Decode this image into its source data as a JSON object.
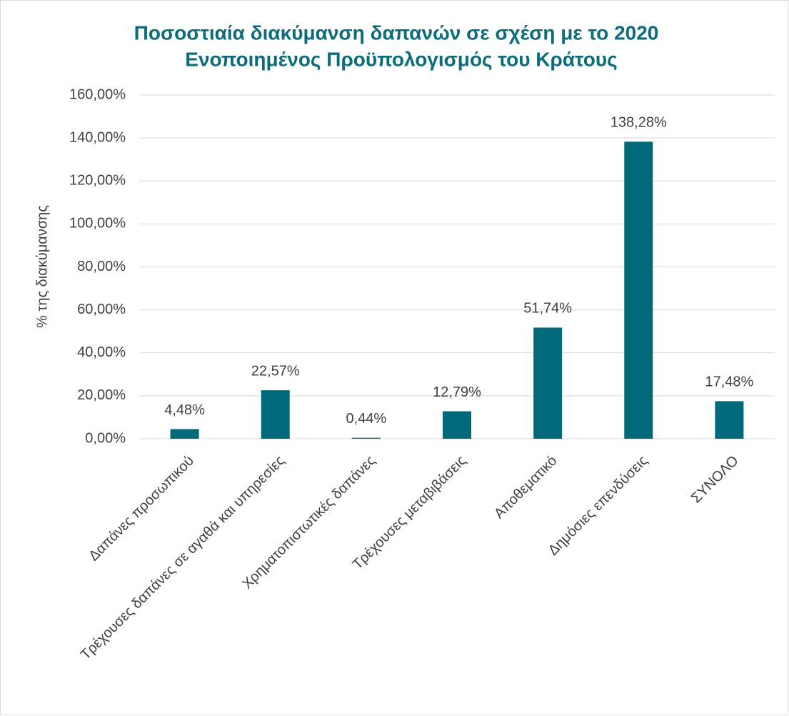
{
  "chart_data": {
    "type": "bar",
    "title": [
      "Ποσοστιαία διακύμανση δαπανών σε σχέση με το 2020",
      "Ενοποιημένος Προϋπολογισμός του Κράτους"
    ],
    "y_label": "% της διακύμανσης",
    "categories": [
      "Δαπάνες προσωπικού",
      "Τρέχουσες δαπάνες σε αγαθά και υπηρεσίες",
      "Χρηματοπιστωτικές δαπάνες",
      "Τρέχουσες μεταβιβάσεις",
      "Αποθεματικό",
      "Δημόσιες επενδύσεις",
      "ΣΥΝΟΛΟ"
    ],
    "values": [
      4.48,
      22.57,
      0.44,
      12.79,
      51.74,
      138.28,
      17.48
    ],
    "value_labels": [
      "4,48%",
      "22,57%",
      "0,44%",
      "12,79%",
      "51,74%",
      "138,28%",
      "17,48%"
    ],
    "color": "#006a7a",
    "ylim": [
      0,
      160
    ],
    "yticks": [
      {
        "value": 0,
        "label": "0,00%"
      },
      {
        "value": 20,
        "label": "20,00%"
      },
      {
        "value": 40,
        "label": "40,00%"
      },
      {
        "value": 60,
        "label": "60,00%"
      },
      {
        "value": 80,
        "label": "80,00%"
      },
      {
        "value": 100,
        "label": "100,00%"
      },
      {
        "value": 120,
        "label": "120,00%"
      },
      {
        "value": 140,
        "label": "140,00%"
      },
      {
        "value": 160,
        "label": "160,00%"
      }
    ],
    "grid": true
  }
}
